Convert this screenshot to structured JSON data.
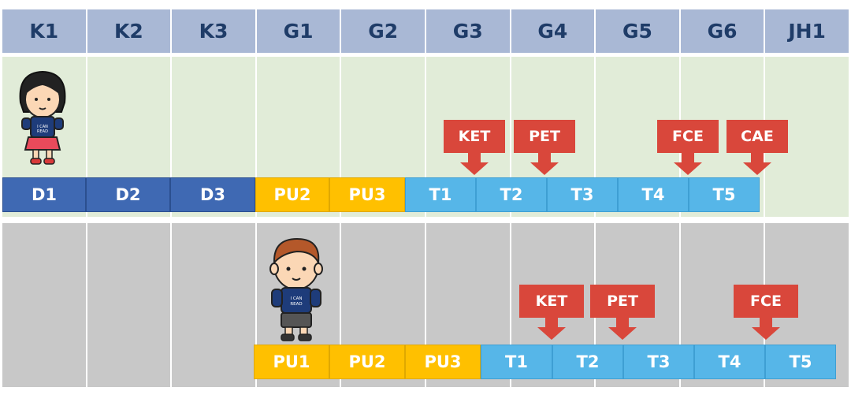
{
  "grades": [
    "K1",
    "K2",
    "K3",
    "G1",
    "G2",
    "G3",
    "G4",
    "G5",
    "G6",
    "JH1"
  ],
  "track1": {
    "stages": [
      "D1",
      "D2",
      "D3",
      "PU2",
      "PU3",
      "T1",
      "T2",
      "T3",
      "T4",
      "T5"
    ],
    "exams": [
      "KET",
      "PET",
      "FCE",
      "CAE"
    ]
  },
  "track2": {
    "stages": [
      "PU1",
      "PU2",
      "PU3",
      "T1",
      "T2",
      "T3",
      "T4",
      "T5"
    ],
    "exams": [
      "KET",
      "PET",
      "FCE"
    ]
  },
  "shirt_text": "I CAN READ",
  "colors": {
    "header_bg": "#a9b8d5",
    "header_text": "#1f3c68",
    "band1_bg": "#e1ecd8",
    "band2_bg": "#c8c8c8",
    "d_stage": "#3f69b3",
    "pu_stage": "#ffc000",
    "t_stage": "#56b6e8",
    "exam": "#d9473b"
  }
}
